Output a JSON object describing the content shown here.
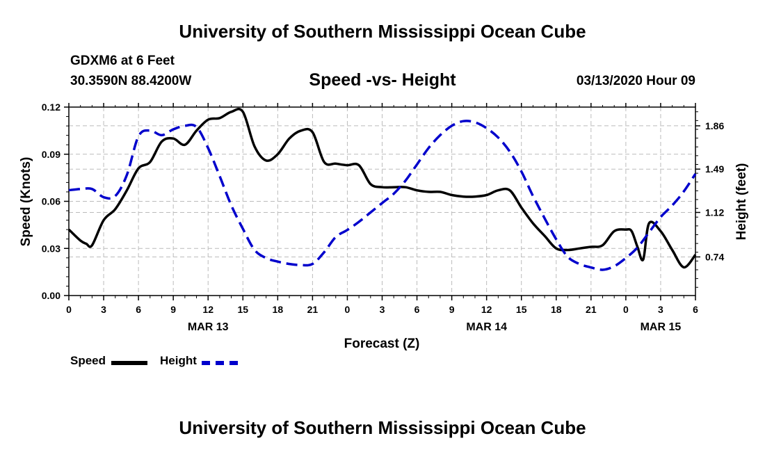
{
  "header": {
    "title": "University of Southern Mississippi Ocean Cube",
    "station": "GDXM6 at 6 Feet",
    "coordinates": "30.3590N 88.4200W",
    "subtitle": "Speed -vs- Height",
    "datetime": "03/13/2020 Hour 09"
  },
  "footer": {
    "title": "University of Southern Mississippi Ocean Cube"
  },
  "legend": {
    "speed_label": "Speed",
    "height_label": "Height"
  },
  "colors": {
    "speed": "#000000",
    "height": "#0000cc",
    "grid": "#bbbbbb"
  },
  "chart_data": {
    "type": "line",
    "title": "Speed -vs- Height",
    "xlabel": "Forecast (Z)",
    "ylabel": "Speed (Knots)",
    "y2label": "Height (feet)",
    "xlim": [
      0,
      54
    ],
    "ylim": [
      0,
      0.12
    ],
    "y2lim": [
      0.41,
      2.02
    ],
    "grid": true,
    "x_ticks": [
      0,
      3,
      6,
      9,
      12,
      15,
      18,
      21,
      24,
      27,
      30,
      33,
      36,
      39,
      42,
      45,
      48,
      51,
      54
    ],
    "x_tick_labels": [
      "0",
      "3",
      "6",
      "9",
      "12",
      "15",
      "18",
      "21",
      "0",
      "3",
      "6",
      "9",
      "12",
      "15",
      "18",
      "21",
      "0",
      "3",
      "6"
    ],
    "date_labels": [
      {
        "x": 12,
        "label": "MAR 13"
      },
      {
        "x": 36,
        "label": "MAR 14"
      },
      {
        "x": 51,
        "label": "MAR 15"
      }
    ],
    "y_ticks": [
      0,
      0.03,
      0.06,
      0.09,
      0.12
    ],
    "y_tick_labels": [
      "0.00",
      "0.03",
      "0.06",
      "0.09",
      "0.12"
    ],
    "y2_ticks": [
      0.74,
      1.12,
      1.49,
      1.86
    ],
    "y2_tick_labels": [
      "0.74",
      "1.12",
      "1.49",
      "1.86"
    ],
    "series": [
      {
        "name": "Speed",
        "axis": "left",
        "style": "solid",
        "x": [
          0,
          1,
          1.5,
          2,
          3,
          4,
          5,
          6,
          7,
          8,
          9,
          10,
          11,
          12,
          13,
          14,
          15,
          16,
          17,
          18,
          19,
          20,
          21,
          22,
          23,
          24,
          25,
          26,
          27,
          28,
          29,
          30,
          31,
          32,
          33,
          34,
          35,
          36,
          37,
          38,
          39,
          40,
          41,
          42,
          43,
          44,
          45,
          46,
          47,
          48,
          48.5,
          49,
          49.5,
          50,
          51,
          52,
          53,
          54
        ],
        "values": [
          0.042,
          0.035,
          0.033,
          0.032,
          0.048,
          0.055,
          0.067,
          0.081,
          0.085,
          0.098,
          0.1,
          0.096,
          0.105,
          0.112,
          0.113,
          0.117,
          0.117,
          0.095,
          0.086,
          0.09,
          0.1,
          0.105,
          0.104,
          0.085,
          0.084,
          0.083,
          0.083,
          0.071,
          0.069,
          0.069,
          0.069,
          0.067,
          0.066,
          0.066,
          0.064,
          0.063,
          0.063,
          0.064,
          0.067,
          0.067,
          0.056,
          0.046,
          0.038,
          0.03,
          0.029,
          0.03,
          0.031,
          0.032,
          0.041,
          0.042,
          0.041,
          0.031,
          0.023,
          0.046,
          0.041,
          0.029,
          0.018,
          0.026
        ]
      },
      {
        "name": "Height",
        "axis": "right",
        "style": "dashed",
        "x": [
          0,
          1,
          2,
          3,
          4,
          5,
          6,
          7,
          8,
          9,
          10,
          11,
          12,
          13,
          14,
          15,
          16,
          17,
          18,
          19,
          20,
          21,
          22,
          23,
          24,
          25,
          26,
          27,
          28,
          29,
          30,
          31,
          32,
          33,
          34,
          35,
          36,
          37,
          38,
          39,
          40,
          41,
          42,
          43,
          44,
          45,
          46,
          47,
          48,
          49,
          50,
          51,
          52,
          53,
          54
        ],
        "values": [
          1.31,
          1.32,
          1.32,
          1.25,
          1.26,
          1.44,
          1.77,
          1.82,
          1.78,
          1.83,
          1.86,
          1.85,
          1.67,
          1.43,
          1.18,
          0.98,
          0.8,
          0.73,
          0.7,
          0.68,
          0.67,
          0.68,
          0.78,
          0.91,
          0.97,
          1.04,
          1.12,
          1.2,
          1.28,
          1.39,
          1.53,
          1.67,
          1.78,
          1.86,
          1.9,
          1.89,
          1.84,
          1.76,
          1.64,
          1.47,
          1.26,
          1.07,
          0.89,
          0.74,
          0.68,
          0.65,
          0.63,
          0.66,
          0.73,
          0.82,
          0.95,
          1.08,
          1.18,
          1.3,
          1.45
        ]
      }
    ]
  }
}
